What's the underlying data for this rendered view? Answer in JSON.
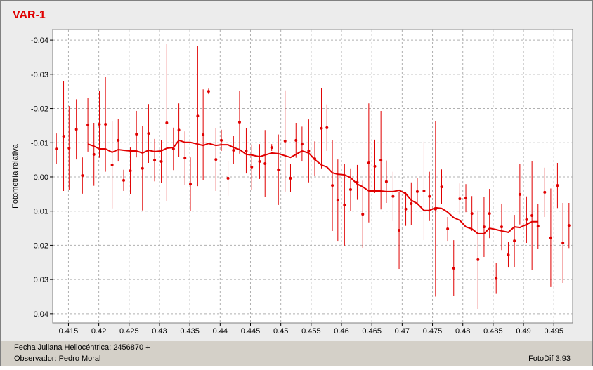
{
  "chart_data": {
    "type": "scatter",
    "title": "VAR-1",
    "y_label": "Fotometría relativa",
    "xlim": [
      0.4124,
      0.4981
    ],
    "ylim": [
      -0.0431,
      0.0427
    ],
    "y_inverted": true,
    "grid": true,
    "xticks": [
      0.415,
      0.42,
      0.425,
      0.43,
      0.435,
      0.44,
      0.445,
      0.45,
      0.455,
      0.46,
      0.465,
      0.47,
      0.475,
      0.48,
      0.485,
      0.49,
      0.495
    ],
    "yticks": [
      -0.04,
      -0.03,
      -0.02,
      -0.01,
      {
        "value": 0,
        "label": "0.00"
      },
      0.01,
      0.02,
      0.03,
      0.04
    ],
    "series": [
      {
        "type": "scatter",
        "color": "#e00000",
        "x": [
          0.413,
          0.4142,
          0.4151,
          0.4163,
          0.4173,
          0.4182,
          0.4192,
          0.4201,
          0.4211,
          0.4222,
          0.4232,
          0.4241,
          0.4252,
          0.4262,
          0.4272,
          0.4282,
          0.4292,
          0.4303,
          0.4312,
          0.4323,
          0.4332,
          0.4342,
          0.4351,
          0.4363,
          0.4372,
          0.4381,
          0.4393,
          0.4402,
          0.4413,
          0.4422,
          0.4432,
          0.4443,
          0.4452,
          0.4465,
          0.4474,
          0.4485,
          0.4496,
          0.4507,
          0.4516,
          0.4525,
          0.4535,
          0.4546,
          0.4556,
          0.4567,
          0.4576,
          0.4585,
          0.4594,
          0.4605,
          0.4615,
          0.4626,
          0.4635,
          0.4645,
          0.4655,
          0.4665,
          0.4674,
          0.4685,
          0.4695,
          0.4706,
          0.4715,
          0.4725,
          0.4736,
          0.4745,
          0.4755,
          0.4765,
          0.4775,
          0.4785,
          0.4795,
          0.4805,
          0.4815,
          0.4825,
          0.4835,
          0.4844,
          0.4855,
          0.4864,
          0.4875,
          0.4885,
          0.4894,
          0.4905,
          0.4914,
          0.4924,
          0.4935,
          0.4945,
          0.4956,
          0.4965,
          0.4975
        ],
        "values": [
          -0.0082,
          -0.0119,
          -0.0084,
          -0.0139,
          -0.0004,
          -0.0152,
          -0.0066,
          -0.0154,
          -0.0154,
          -0.0035,
          -0.0107,
          0.001,
          -0.0018,
          -0.0125,
          -0.0025,
          -0.0127,
          -0.0049,
          -0.0045,
          -0.0158,
          -0.0082,
          -0.0137,
          -0.0055,
          0.0021,
          -0.0178,
          -0.0123,
          -0.025,
          -0.0051,
          -0.0107,
          0.0004,
          -0.0078,
          -0.016,
          -0.0076,
          -0.0029,
          -0.0045,
          -0.0039,
          -0.0086,
          -0.0021,
          -0.0105,
          0.0004,
          -0.0107,
          -0.0096,
          -0.0076,
          -0.0053,
          -0.0142,
          -0.0144,
          0.0025,
          0.0068,
          0.0082,
          0.0037,
          0.0016,
          0.0109,
          -0.0041,
          -0.0031,
          -0.0049,
          0.0014,
          0.0057,
          0.0156,
          0.0094,
          0.0078,
          0.0043,
          0.0041,
          0.0057,
          0.0094,
          0.0029,
          0.0152,
          0.0267,
          0.0064,
          0.0062,
          0.0107,
          0.0242,
          0.0146,
          0.0107,
          0.0297,
          0.0146,
          0.0228,
          0.0187,
          0.0051,
          0.0125,
          0.0113,
          0.0144,
          0.0045,
          0.0178,
          0.0025,
          0.0193,
          0.0142
        ],
        "errors": [
          0.0045,
          0.016,
          0.0123,
          0.0088,
          0.0053,
          0.0078,
          0.0092,
          0.0098,
          0.0139,
          0.0127,
          0.0062,
          0.0031,
          0.0068,
          0.0068,
          0.0123,
          0.0086,
          0.0062,
          0.0062,
          0.023,
          0.0062,
          0.0078,
          0.0078,
          0.0078,
          0.0205,
          0.0133,
          0.0008,
          0.0092,
          0.0031,
          0.0051,
          0.0041,
          0.0092,
          0.0066,
          0.0066,
          0.0051,
          0.0098,
          0.001,
          0.0103,
          0.0148,
          0.0041,
          0.0051,
          0.0051,
          0.0092,
          0.0051,
          0.0117,
          0.0068,
          0.0133,
          0.0119,
          0.0119,
          0.0062,
          0.0051,
          0.0098,
          0.0174,
          0.0078,
          0.0144,
          0.0062,
          0.0072,
          0.0113,
          0.0049,
          0.0062,
          0.0039,
          0.0144,
          0.0072,
          0.0256,
          0.0051,
          0.0035,
          0.0082,
          0.0045,
          0.0041,
          0.0051,
          0.0144,
          0.0088,
          0.0072,
          0.0045,
          0.0068,
          0.0037,
          0.0076,
          0.0088,
          0.0068,
          0.016,
          0.0066,
          0.0072,
          0.0144,
          0.0066,
          0.0117,
          0.0066
        ]
      },
      {
        "type": "line",
        "color": "#e00000",
        "x": [
          0.4182,
          0.4192,
          0.4201,
          0.4211,
          0.4222,
          0.4232,
          0.4241,
          0.4252,
          0.4262,
          0.4272,
          0.4282,
          0.4292,
          0.4303,
          0.4312,
          0.4323,
          0.4332,
          0.4342,
          0.4351,
          0.4363,
          0.4372,
          0.4381,
          0.4393,
          0.4402,
          0.4413,
          0.4422,
          0.4432,
          0.4443,
          0.4452,
          0.4465,
          0.4474,
          0.4485,
          0.4496,
          0.4507,
          0.4516,
          0.4525,
          0.4535,
          0.4546,
          0.4556,
          0.4567,
          0.4576,
          0.4585,
          0.4594,
          0.4605,
          0.4615,
          0.4626,
          0.4635,
          0.4645,
          0.4655,
          0.4665,
          0.4674,
          0.4685,
          0.4695,
          0.4706,
          0.4715,
          0.4725,
          0.4736,
          0.4745,
          0.4755,
          0.4765,
          0.4775,
          0.4785,
          0.4795,
          0.4805,
          0.4815,
          0.4825,
          0.4835,
          0.4844,
          0.4855,
          0.4864,
          0.4875,
          0.4885,
          0.4894,
          0.4905,
          0.4914,
          0.4924
        ],
        "values": [
          -0.0096,
          -0.009,
          -0.0082,
          -0.0082,
          -0.0072,
          -0.008,
          -0.0078,
          -0.0076,
          -0.0076,
          -0.007,
          -0.0078,
          -0.0074,
          -0.0076,
          -0.0084,
          -0.0086,
          -0.0107,
          -0.0101,
          -0.0101,
          -0.0096,
          -0.0092,
          -0.0098,
          -0.0092,
          -0.0094,
          -0.0094,
          -0.0086,
          -0.008,
          -0.0066,
          -0.0064,
          -0.0059,
          -0.0064,
          -0.007,
          -0.0068,
          -0.0062,
          -0.0057,
          -0.0066,
          -0.0076,
          -0.007,
          -0.0051,
          -0.0035,
          -0.0029,
          -0.0012,
          -0.0008,
          -0.0006,
          0.0002,
          0.0021,
          0.0029,
          0.0041,
          0.0041,
          0.0041,
          0.0043,
          0.0043,
          0.0039,
          0.0049,
          0.0068,
          0.0078,
          0.0098,
          0.0098,
          0.009,
          0.0092,
          0.0103,
          0.0119,
          0.0127,
          0.0146,
          0.0152,
          0.0166,
          0.0166,
          0.015,
          0.0154,
          0.0158,
          0.0162,
          0.0146,
          0.0148,
          0.0139,
          0.0131,
          0.0131
        ]
      }
    ]
  },
  "footer": {
    "date_label": "Fecha Juliana Heliocéntrica: 2456870 +",
    "observer": "Observador: Pedro Moral",
    "software": "FotoDif 3.93"
  }
}
